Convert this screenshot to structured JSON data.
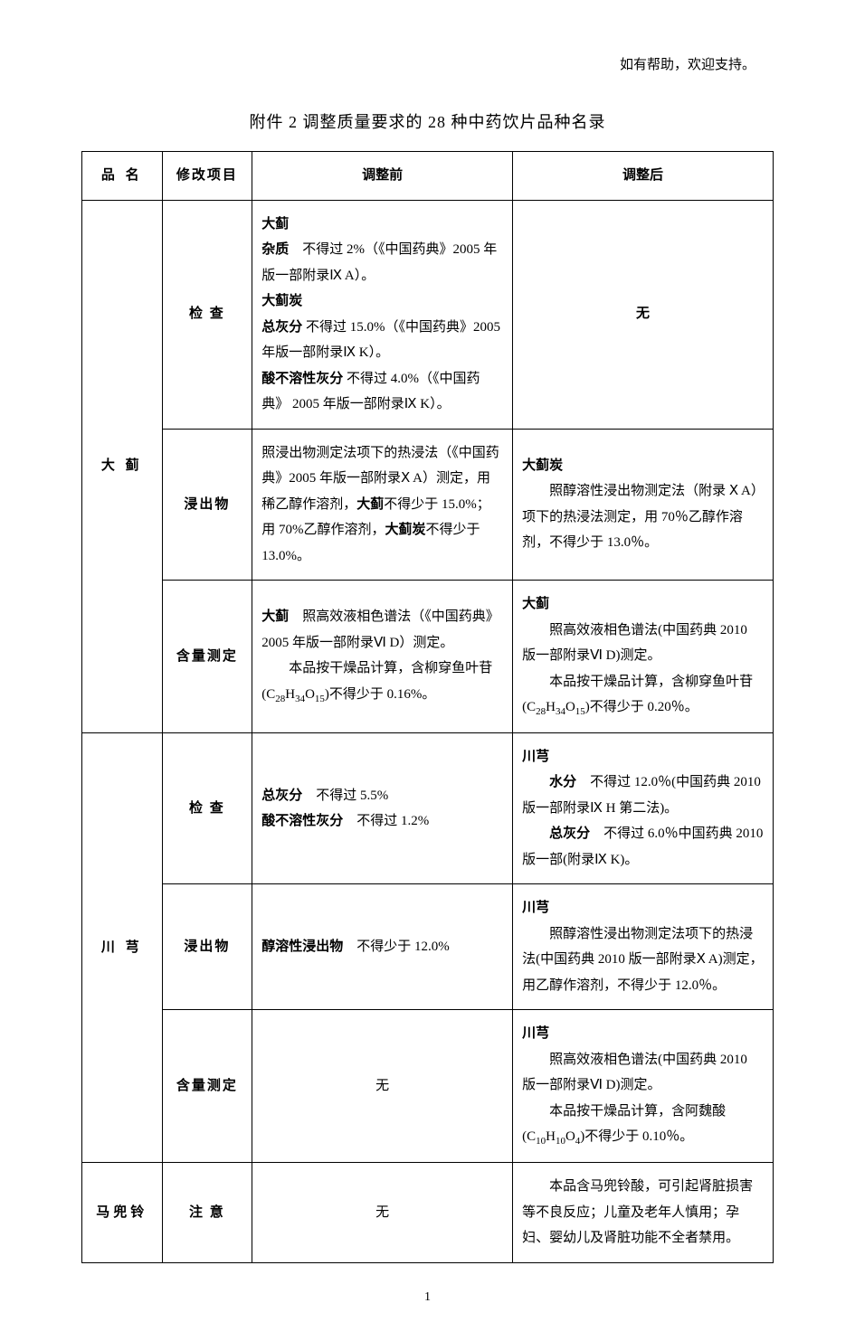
{
  "header_note": "如有帮助，欢迎支持。",
  "title": "附件 2 调整质量要求的 28 种中药饮片品种名录",
  "page_number": "1",
  "headers": {
    "col1": "品 名",
    "col2": "修改项目",
    "col3": "调整前",
    "col4": "调整后"
  },
  "rows": [
    {
      "name": "大 蓟",
      "name_rowspan": 3,
      "item": "检 查",
      "before_html": "<span class='bold'>大蓟</span><br><span class='bold'>杂质</span>　不得过 2%（《中国药典》2005 年版一部附录Ⅸ A）。<br><span class='bold'>大蓟炭</span><br><span class='bold'>总灰分</span> 不得过 15.0%（《中国药典》2005 年版一部附录Ⅸ K）。<br><span class='bold'>酸不溶性灰分</span> 不得过 4.0%（《中国药典》 2005 年版一部附录Ⅸ K）。",
      "after_html": "<div class='center bold'>无</div>"
    },
    {
      "item": "浸出物",
      "before_html": "照浸出物测定法项下的热浸法（《中国药典》2005 年版一部附录Ⅹ A）测定，用稀乙醇作溶剂，<span class='bold'>大蓟</span>不得少于 15.0%；用 70%乙醇作溶剂，<span class='bold'>大蓟炭</span>不得少于 13.0%。",
      "after_html": "<span class='bold'>大蓟炭</span><br>　　照醇溶性浸出物测定法（附录 Ⅹ A）项下的热浸法测定，用 70％乙醇作溶剂，不得少于 13.0％。"
    },
    {
      "item": "含量测定",
      "before_html": "<span class='bold'>大蓟</span>　照高效液相色谱法（《中国药典》 2005 年版一部附录Ⅵ D）测定。<br>　　本品按干燥品计算，含柳穿鱼叶苷(C<span class='sub'>28</span>H<span class='sub'>34</span>O<span class='sub'>15</span>)不得少于 0.16%。",
      "after_html": "<span class='bold'>大蓟</span><br>　　照高效液相色谱法(中国药典 2010 版一部附录Ⅵ D)测定。<br>　　本品按干燥品计算，含柳穿鱼叶苷(C<span class='sub'>28</span>H<span class='sub'>34</span>O<span class='sub'>15</span>)不得少于 0.20％。"
    },
    {
      "name": "川 芎",
      "name_rowspan": 3,
      "item": "检 查",
      "before_html": "<span class='bold'>总灰分</span>　不得过 5.5%<br><span class='bold'>酸不溶性灰分</span>　不得过 1.2%",
      "after_html": "<span class='bold'>川芎</span><br>　　<span class='bold'>水分</span>　不得过 12.0％(中国药典 2010 版一部附录Ⅸ H 第二法)。<br>　　<span class='bold'>总灰分</span>　不得过 6.0％中国药典 2010 版一部(附录Ⅸ K)。"
    },
    {
      "item": "浸出物",
      "before_html": "<span class='bold'>醇溶性浸出物</span>　不得少于 12.0%",
      "after_html": "<span class='bold'>川芎</span><br>　　照醇溶性浸出物测定法项下的热浸法(中国药典 2010 版一部附录Ⅹ A)测定，用乙醇作溶剂，不得少于 12.0％。"
    },
    {
      "item": "含量测定",
      "before_html": "<div class='center'>无</div>",
      "after_html": "<span class='bold'>川芎</span><br>　　照高效液相色谱法(中国药典 2010 版一部附录Ⅵ D)测定。<br>　　本品按干燥品计算，含阿魏酸(C<span class='sub'>10</span>H<span class='sub'>10</span>O<span class='sub'>4</span>)不得少于 0.10％。"
    },
    {
      "name": "马兜铃",
      "name_rowspan": 1,
      "item": "注 意",
      "before_html": "<div class='center'>无</div>",
      "after_html": "　　本品含马兜铃酸，可引起肾脏损害等不良反应；儿童及老年人慎用；孕妇、婴幼儿及肾脏功能不全者禁用。"
    }
  ]
}
